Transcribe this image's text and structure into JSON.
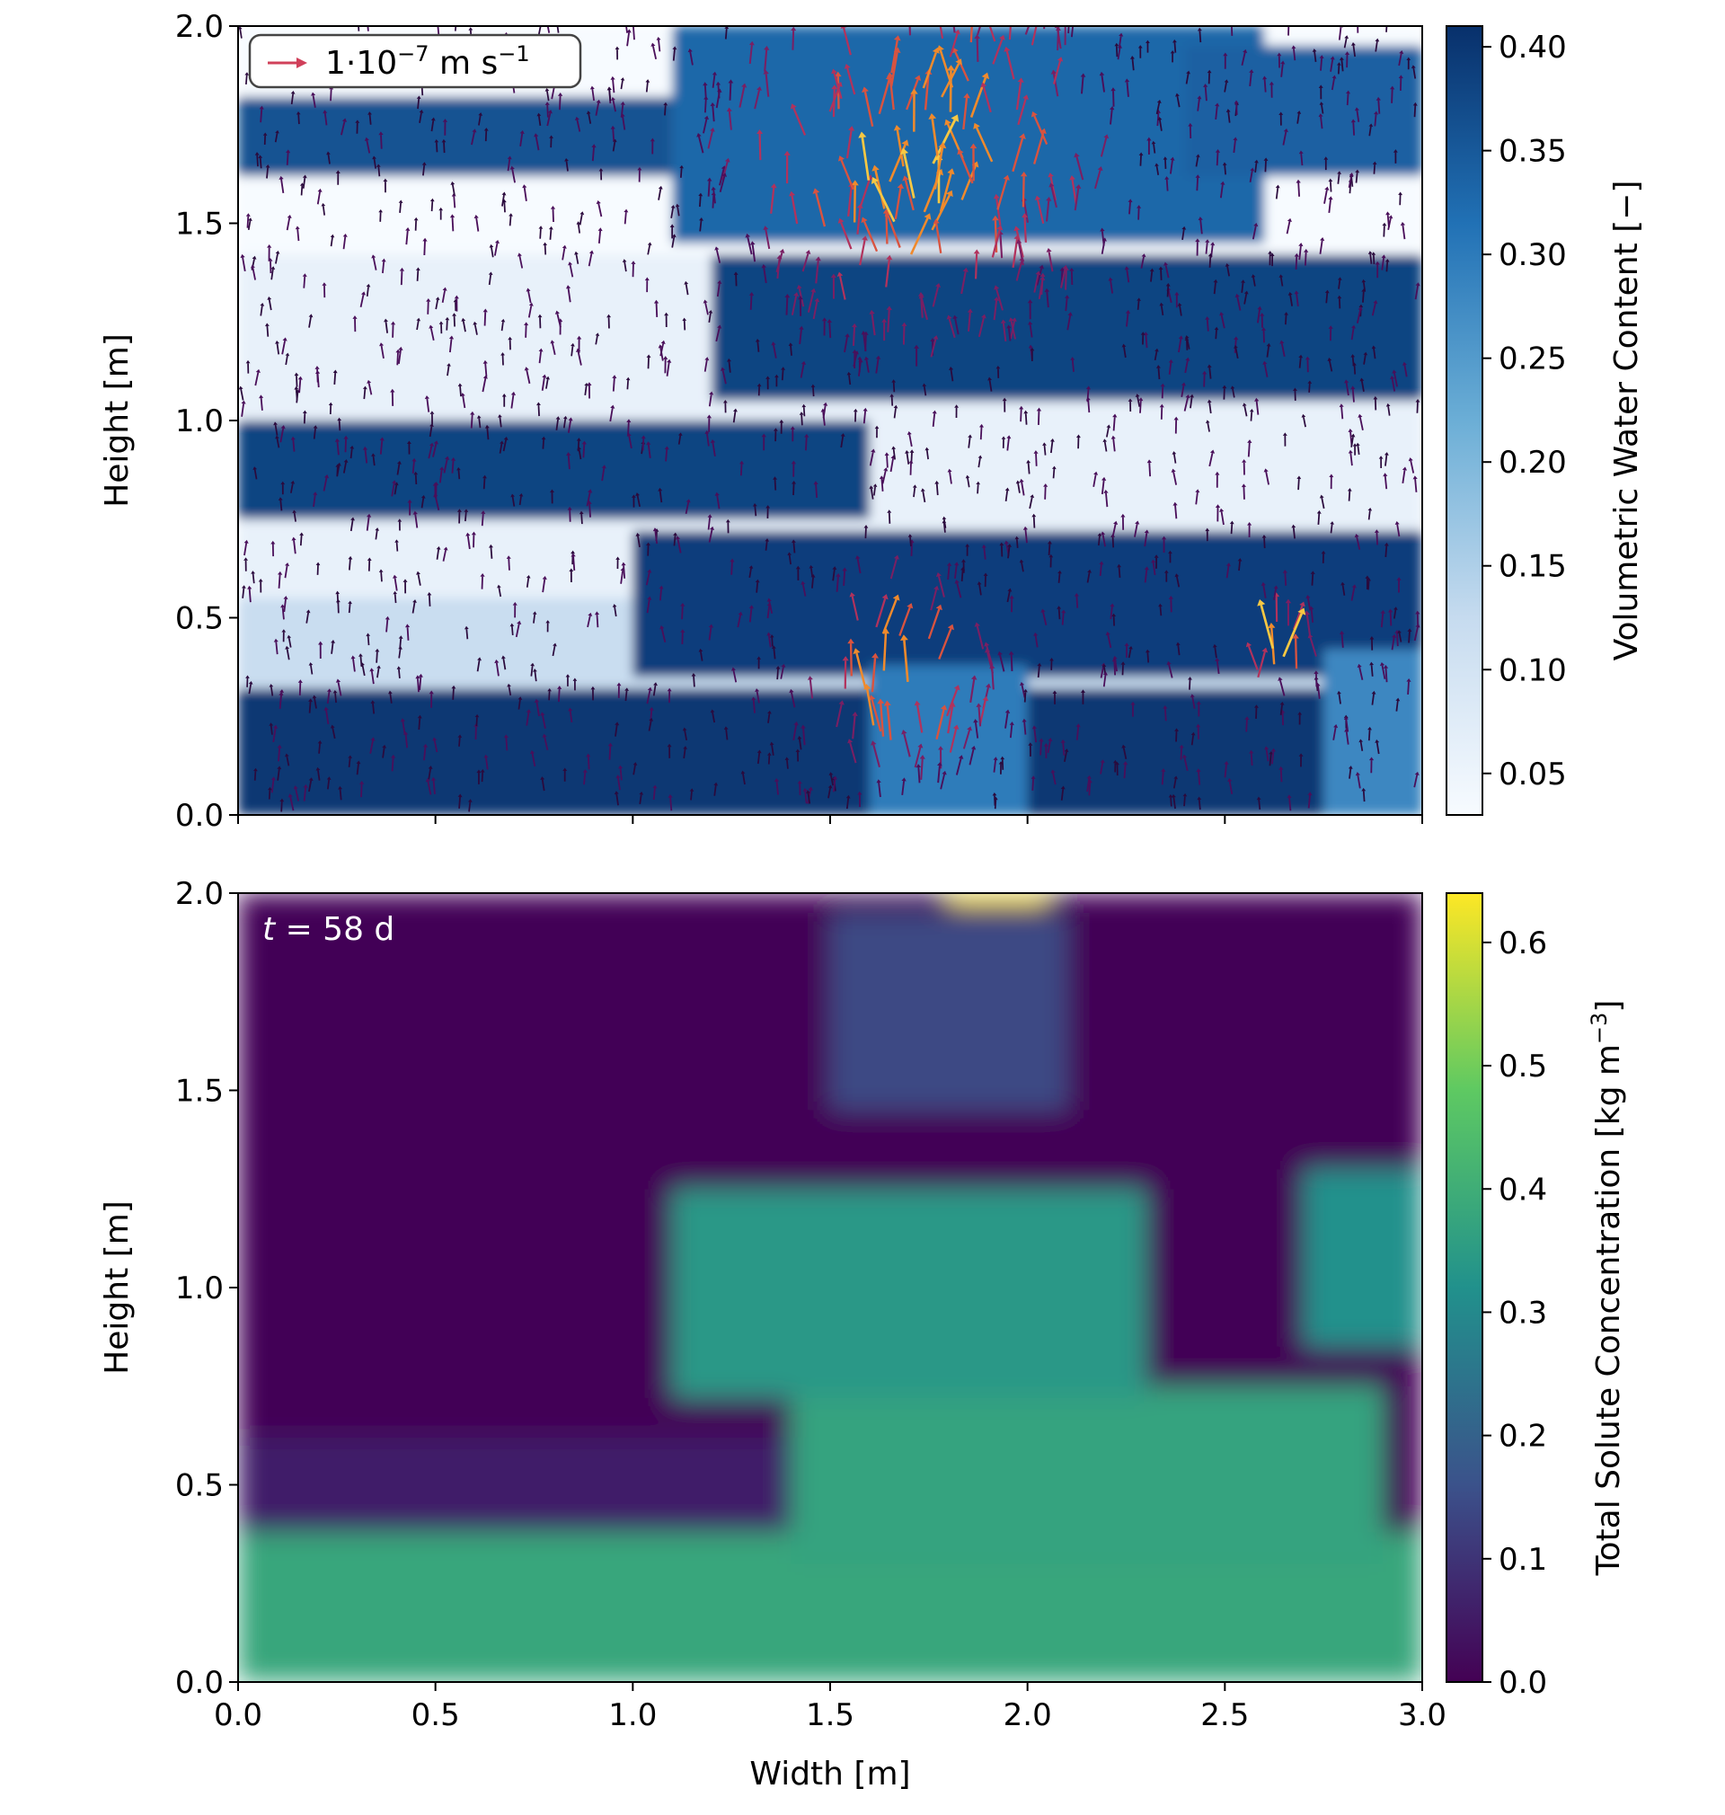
{
  "chart_data": [
    {
      "type": "heatmap",
      "panel": "top",
      "title": "",
      "xlabel": "",
      "ylabel": "Height [m]",
      "xlim": [
        0.0,
        3.0
      ],
      "ylim": [
        0.0,
        2.0
      ],
      "x_ticks": [
        0.0,
        0.5,
        1.0,
        1.5,
        2.0,
        2.5,
        3.0
      ],
      "x_tick_labels_visible": false,
      "y_ticks": [
        "0.0",
        "0.5",
        "1.0",
        "1.5",
        "2.0"
      ],
      "colormap": "Blues",
      "overlay": "velocity quiver arrows (colored by magnitude)",
      "legend": {
        "placement": "top-left",
        "entry": "1·10",
        "entry_exponent": "−7",
        "entry_unit": " m s",
        "entry_unit_exponent": "−1",
        "arrow_color": "#d0405a"
      },
      "colorbar": {
        "label": "Volumetric Water Content [−]",
        "range": [
          0.03,
          0.41
        ],
        "ticks": [
          "0.05",
          "0.10",
          "0.15",
          "0.20",
          "0.25",
          "0.30",
          "0.35",
          "0.40"
        ],
        "colors": [
          "#f7fbff",
          "#c6dbef",
          "#6baed6",
          "#2171b5",
          "#08306b"
        ]
      },
      "regions": [
        {
          "x0": 0.0,
          "x1": 3.0,
          "y0": 1.42,
          "y1": 2.0,
          "value": 0.03
        },
        {
          "x0": 1.1,
          "x1": 2.6,
          "y0": 1.45,
          "y1": 2.0,
          "value": 0.33
        },
        {
          "x0": 0.0,
          "x1": 1.1,
          "y0": 1.62,
          "y1": 1.82,
          "value": 0.36
        },
        {
          "x0": 2.4,
          "x1": 3.0,
          "y0": 1.62,
          "y1": 1.95,
          "value": 0.34
        },
        {
          "x0": 0.0,
          "x1": 3.0,
          "y0": 0.55,
          "y1": 1.42,
          "value": 0.06
        },
        {
          "x0": 1.2,
          "x1": 3.0,
          "y0": 1.05,
          "y1": 1.42,
          "value": 0.38
        },
        {
          "x0": 0.0,
          "x1": 1.6,
          "y0": 0.75,
          "y1": 1.0,
          "value": 0.38
        },
        {
          "x0": 0.0,
          "x1": 3.0,
          "y0": 0.3,
          "y1": 0.55,
          "value": 0.12
        },
        {
          "x0": 1.0,
          "x1": 3.0,
          "y0": 0.35,
          "y1": 0.72,
          "value": 0.39
        },
        {
          "x0": 0.0,
          "x1": 3.0,
          "y0": 0.0,
          "y1": 0.32,
          "value": 0.4
        },
        {
          "x0": 1.6,
          "x1": 2.0,
          "y0": 0.0,
          "y1": 0.38,
          "value": 0.3
        },
        {
          "x0": 2.75,
          "x1": 3.0,
          "y0": 0.0,
          "y1": 0.42,
          "value": 0.28
        }
      ]
    },
    {
      "type": "heatmap",
      "panel": "bottom",
      "title": "",
      "xlabel": "Width [m]",
      "ylabel": "Height [m]",
      "xlim": [
        0.0,
        3.0
      ],
      "ylim": [
        0.0,
        2.0
      ],
      "x_ticks": [
        "0.0",
        "0.5",
        "1.0",
        "1.5",
        "2.0",
        "2.5",
        "3.0"
      ],
      "y_ticks": [
        "0.0",
        "0.5",
        "1.0",
        "1.5",
        "2.0"
      ],
      "colormap": "viridis",
      "annotation": {
        "var": "t",
        "text": " = 58 d",
        "placement": "top-left",
        "color": "#ffffff"
      },
      "colorbar": {
        "label": "Total Solute Concentration [kg m",
        "label_exponent": "−3",
        "label_close": "]",
        "range": [
          0.0,
          0.64
        ],
        "ticks": [
          "0.0",
          "0.1",
          "0.2",
          "0.3",
          "0.4",
          "0.5",
          "0.6"
        ],
        "colors": [
          "#440154",
          "#3b528b",
          "#21918c",
          "#5ec962",
          "#fde725"
        ]
      },
      "regions": [
        {
          "x0": 0.0,
          "x1": 3.0,
          "y0": 0.0,
          "y1": 2.0,
          "value": 0.01
        },
        {
          "x0": 0.0,
          "x1": 3.0,
          "y0": 0.0,
          "y1": 0.38,
          "value": 0.38
        },
        {
          "x0": 1.4,
          "x1": 2.9,
          "y0": 0.3,
          "y1": 0.75,
          "value": 0.37
        },
        {
          "x0": 0.0,
          "x1": 1.4,
          "y0": 0.38,
          "y1": 0.62,
          "value": 0.06
        },
        {
          "x0": 1.1,
          "x1": 2.3,
          "y0": 0.72,
          "y1": 1.25,
          "value": 0.34
        },
        {
          "x0": 2.7,
          "x1": 3.0,
          "y0": 0.85,
          "y1": 1.3,
          "value": 0.32
        },
        {
          "x0": 1.5,
          "x1": 2.1,
          "y0": 1.45,
          "y1": 1.95,
          "value": 0.14
        },
        {
          "x0": 1.8,
          "x1": 2.05,
          "y0": 1.97,
          "y1": 2.0,
          "value": 0.64
        }
      ]
    }
  ]
}
